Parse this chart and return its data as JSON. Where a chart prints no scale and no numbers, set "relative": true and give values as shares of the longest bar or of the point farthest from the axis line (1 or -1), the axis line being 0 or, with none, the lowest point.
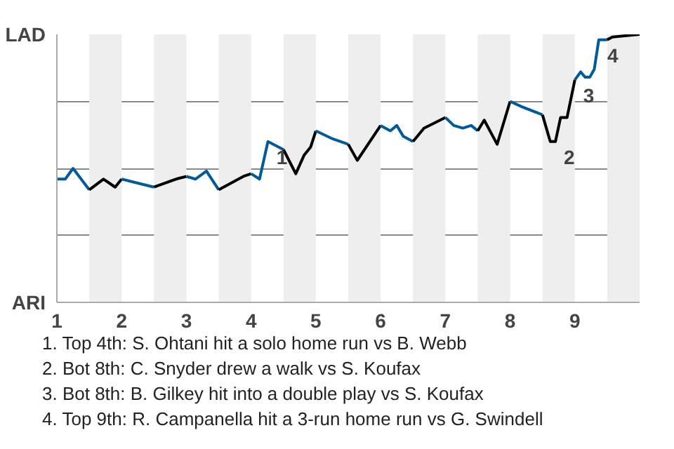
{
  "chart_data": {
    "type": "line",
    "relative": true,
    "xlim": [
      1,
      10
    ],
    "xticks": [
      1,
      2,
      3,
      4,
      5,
      6,
      7,
      8,
      9
    ],
    "grid": "y",
    "bands": [
      {
        "axis": "x",
        "from": 1.5,
        "to": 2,
        "color": "#eeeeee"
      },
      {
        "axis": "x",
        "from": 2.5,
        "to": 3,
        "color": "#eeeeee"
      },
      {
        "axis": "x",
        "from": 3.5,
        "to": 4,
        "color": "#eeeeee"
      },
      {
        "axis": "x",
        "from": 4.5,
        "to": 5,
        "color": "#eeeeee"
      },
      {
        "axis": "x",
        "from": 5.5,
        "to": 6,
        "color": "#eeeeee"
      },
      {
        "axis": "x",
        "from": 6.5,
        "to": 7,
        "color": "#eeeeee"
      },
      {
        "axis": "x",
        "from": 7.5,
        "to": 8,
        "color": "#eeeeee"
      },
      {
        "axis": "x",
        "from": 8.5,
        "to": 9,
        "color": "#eeeeee"
      },
      {
        "axis": "x",
        "from": 9.5,
        "to": 10,
        "color": "#eeeeee"
      }
    ],
    "series": [
      {
        "color": "#005a9c",
        "x": [
          1,
          1.13,
          1.25,
          1.5
        ],
        "values": [
          0.46,
          0.46,
          0.5,
          0.42
        ]
      },
      {
        "color": "#000000",
        "x": [
          1.5,
          1.72,
          1.9,
          2
        ],
        "values": [
          0.42,
          0.46,
          0.43,
          0.46
        ]
      },
      {
        "color": "#005a9c",
        "x": [
          2,
          2.5
        ],
        "values": [
          0.46,
          0.43
        ]
      },
      {
        "color": "#000000",
        "x": [
          2.5,
          2.84,
          3
        ],
        "values": [
          0.43,
          0.46,
          0.47
        ]
      },
      {
        "color": "#005a9c",
        "x": [
          3,
          3.14,
          3.31,
          3.5
        ],
        "values": [
          0.47,
          0.46,
          0.49,
          0.42
        ]
      },
      {
        "color": "#000000",
        "x": [
          3.5,
          3.88,
          4
        ],
        "values": [
          0.42,
          0.47,
          0.48
        ]
      },
      {
        "color": "#005a9c",
        "x": [
          4,
          4.13,
          4.26,
          4.5
        ],
        "values": [
          0.48,
          0.46,
          0.6,
          0.57
        ]
      },
      {
        "color": "#000000",
        "x": [
          4.5,
          4.69,
          4.82,
          4.92,
          5
        ],
        "values": [
          0.57,
          0.48,
          0.55,
          0.58,
          0.64
        ]
      },
      {
        "color": "#005a9c",
        "x": [
          5,
          5.26,
          5.5
        ],
        "values": [
          0.64,
          0.61,
          0.59
        ]
      },
      {
        "color": "#000000",
        "x": [
          5.5,
          5.64,
          6
        ],
        "values": [
          0.59,
          0.53,
          0.66
        ]
      },
      {
        "color": "#005a9c",
        "x": [
          6,
          6.15,
          6.25,
          6.35,
          6.5
        ],
        "values": [
          0.66,
          0.64,
          0.66,
          0.62,
          0.6
        ]
      },
      {
        "color": "#000000",
        "x": [
          6.5,
          6.67,
          7
        ],
        "values": [
          0.6,
          0.65,
          0.69
        ]
      },
      {
        "color": "#005a9c",
        "x": [
          7,
          7.13,
          7.27,
          7.4,
          7.5
        ],
        "values": [
          0.69,
          0.66,
          0.65,
          0.66,
          0.64
        ]
      },
      {
        "color": "#000000",
        "x": [
          7.5,
          7.6,
          7.8,
          8
        ],
        "values": [
          0.64,
          0.68,
          0.59,
          0.75
        ]
      },
      {
        "color": "#005a9c",
        "x": [
          8,
          8.18,
          8.5
        ],
        "values": [
          0.75,
          0.73,
          0.7
        ]
      },
      {
        "color": "#000000",
        "x": [
          8.5,
          8.62,
          8.7,
          8.78,
          8.88,
          9
        ],
        "values": [
          0.7,
          0.6,
          0.6,
          0.69,
          0.69,
          0.83
        ]
      },
      {
        "color": "#005a9c",
        "x": [
          9,
          9.09,
          9.16,
          9.23,
          9.3,
          9.37,
          9.5
        ],
        "values": [
          0.83,
          0.86,
          0.84,
          0.84,
          0.87,
          0.98,
          0.98
        ]
      },
      {
        "color": "#000000",
        "x": [
          9.5,
          9.58,
          10
        ],
        "values": [
          0.98,
          0.99,
          1.0
        ]
      }
    ],
    "annotations": [
      "LAD",
      "ARI",
      {
        "text": "1",
        "x": 4.26,
        "y": 0.6
      },
      {
        "text": "2",
        "x": 8.7,
        "y": 0.6
      },
      {
        "text": "3",
        "x": 9,
        "y": 0.83
      },
      {
        "text": "4",
        "x": 9.37,
        "y": 0.98
      },
      "1. Top 4th: S. Ohtani hit a solo home run vs B. Webb",
      "2. Bot 8th: C. Snyder drew a walk vs S. Koufax",
      "3. Bot 8th: B. Gilkey hit into a double play vs S. Koufax",
      "4. Top 9th: R. Campanella hit a 3-run home run vs G. Swindell"
    ]
  }
}
